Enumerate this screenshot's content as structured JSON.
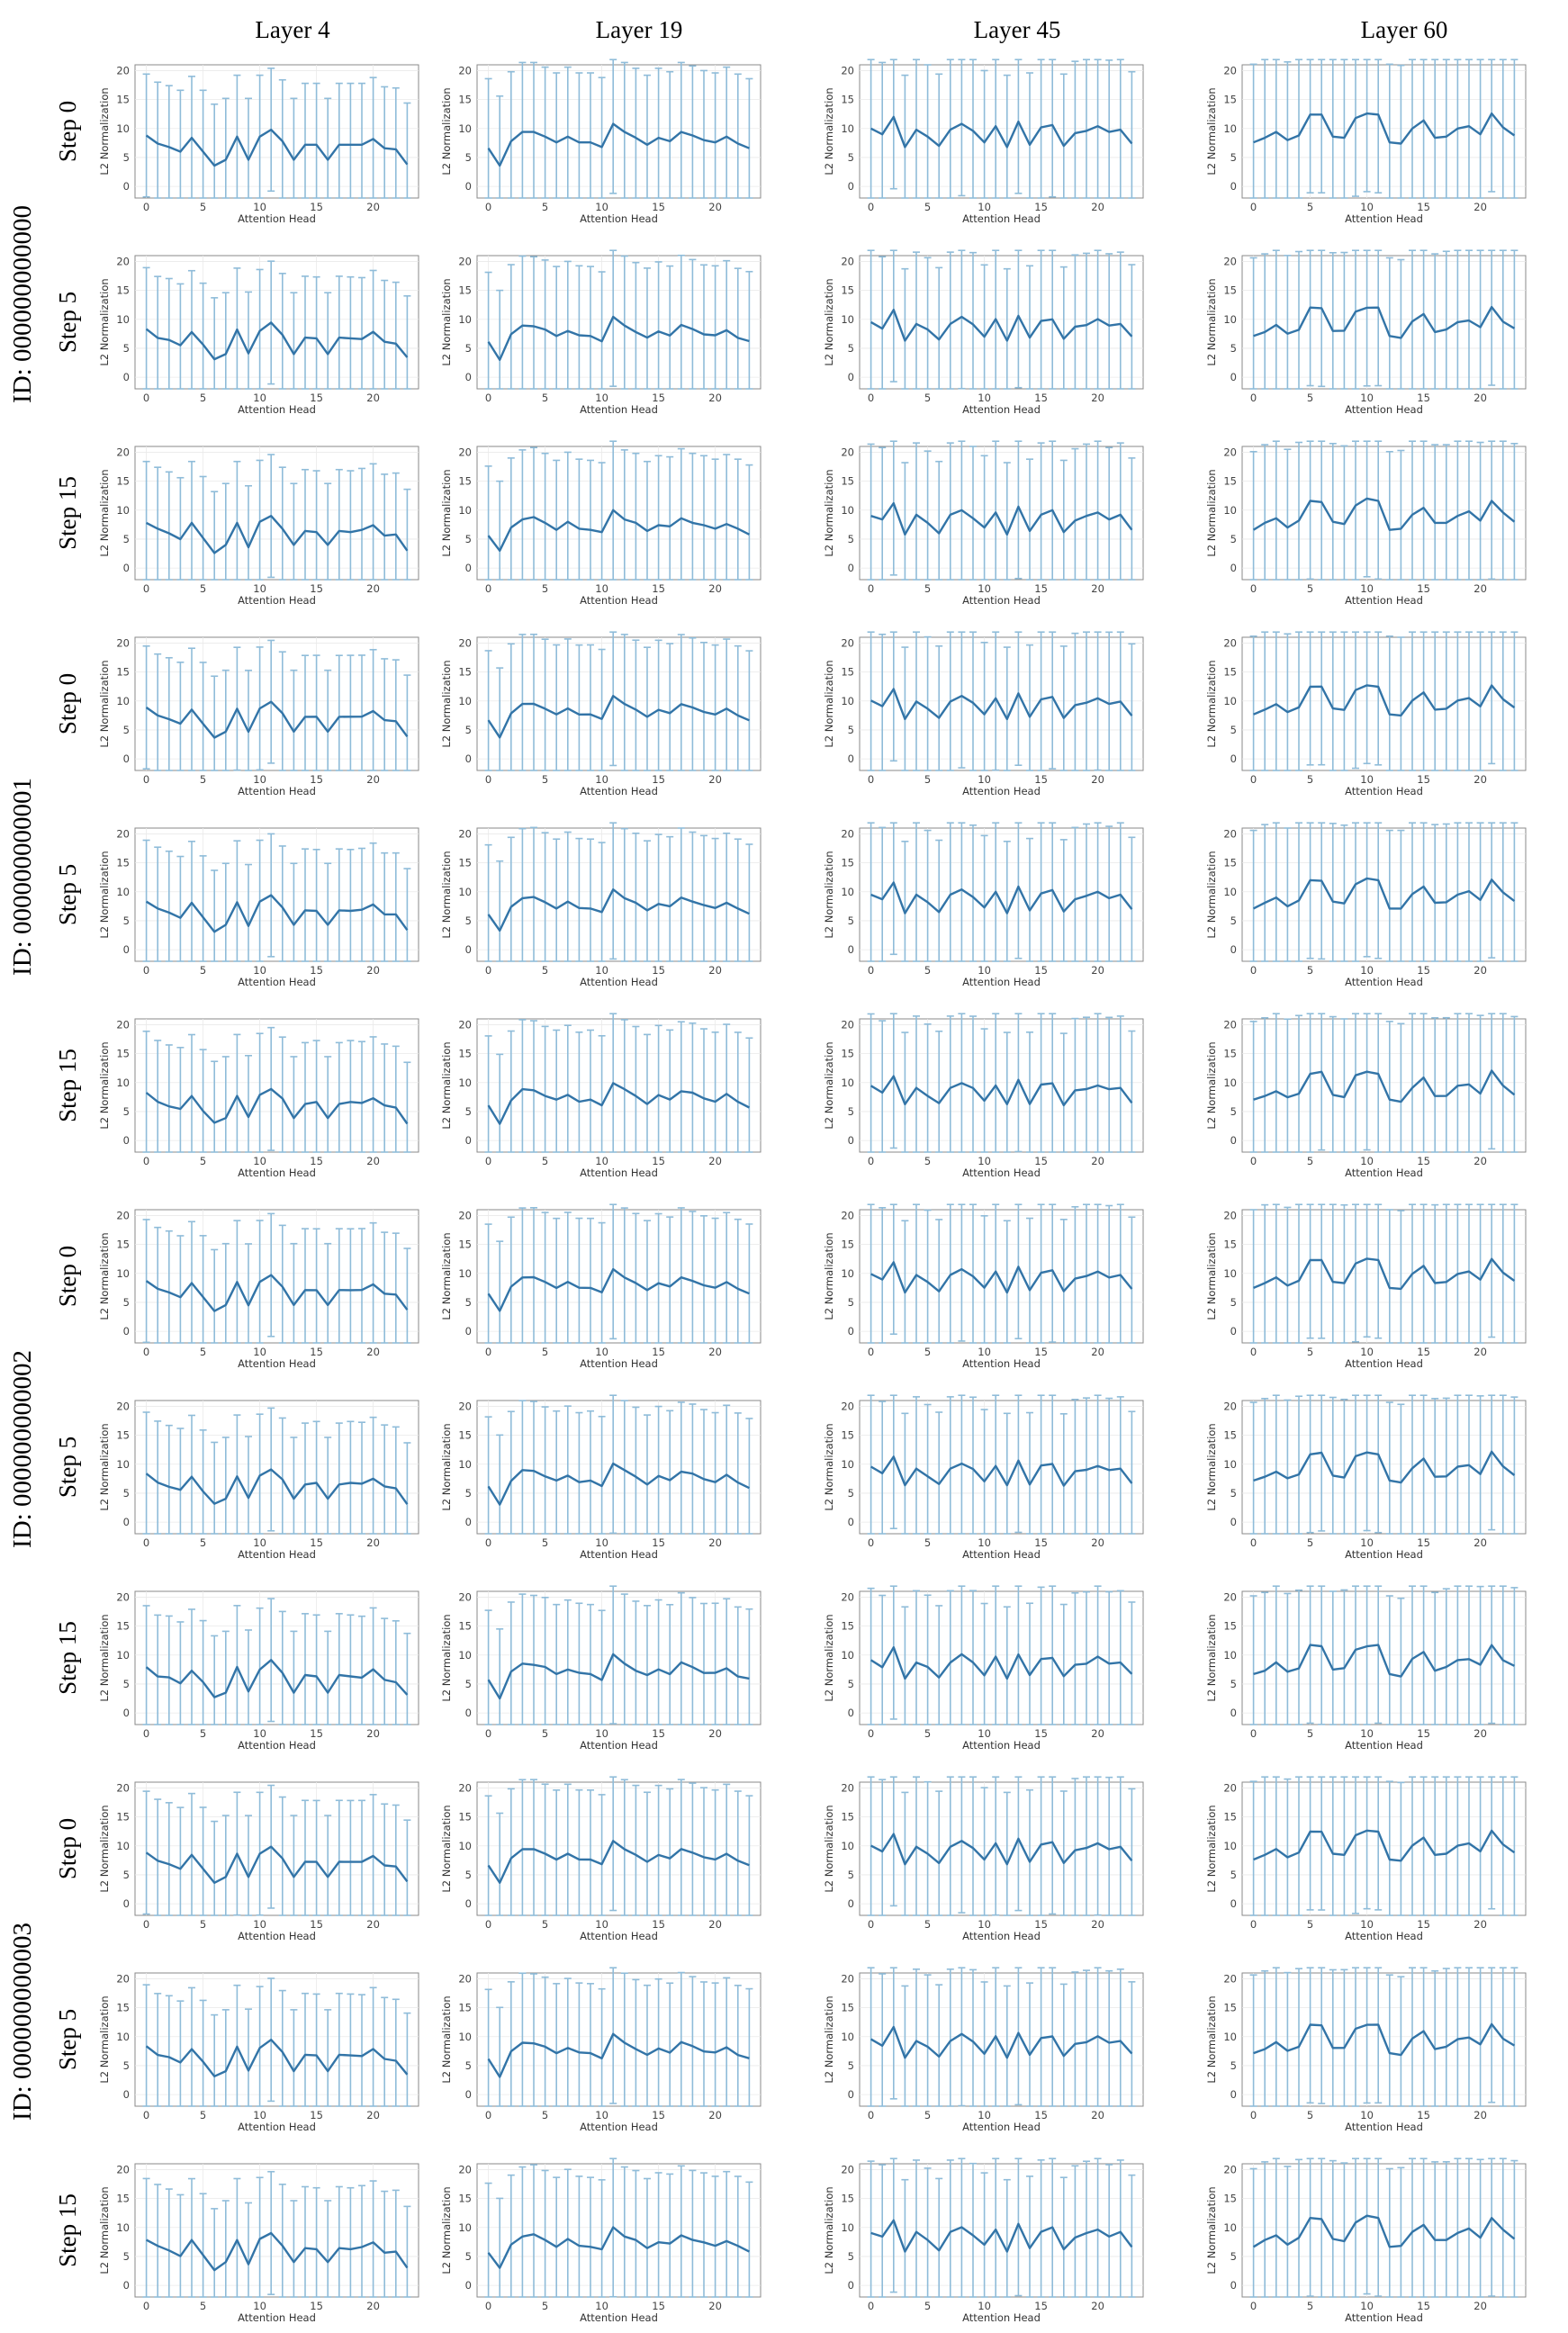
{
  "layers": [
    "Layer 4",
    "Layer 19",
    "Layer 45",
    "Layer 60"
  ],
  "ids": [
    "ID: 000000000000",
    "ID: 000000000001",
    "ID: 000000000002",
    "ID: 000000000003"
  ],
  "steps": [
    "Step 0",
    "Step 5",
    "Step 15"
  ],
  "colors": {
    "mean_line": "#3274a7",
    "error_bar": "#8fbcd9",
    "frame": "#8a8a8a",
    "grid": "#e9e9e9"
  },
  "chart_data": {
    "type": "line",
    "xlabel": "Attention Head",
    "ylabel": "L2 Normalization",
    "xticks": [
      0,
      5,
      10,
      15,
      20
    ],
    "yticks": [
      0,
      5,
      10,
      15,
      20
    ],
    "xlim": [
      -1,
      24
    ],
    "ylim": [
      -2,
      21
    ],
    "grid": true,
    "x": [
      0,
      1,
      2,
      3,
      4,
      5,
      6,
      7,
      8,
      9,
      10,
      11,
      12,
      13,
      14,
      15,
      16,
      17,
      18,
      19,
      20,
      21,
      22,
      23
    ],
    "base_series": {
      "Layer 4": [
        8.8,
        7.4,
        6.8,
        6.0,
        8.4,
        6.0,
        3.6,
        4.6,
        8.6,
        4.6,
        8.6,
        9.8,
        7.8,
        4.6,
        7.2,
        7.2,
        4.6,
        7.2,
        7.2,
        7.2,
        8.2,
        6.6,
        6.4,
        3.8
      ],
      "Layer 19": [
        6.6,
        3.6,
        7.8,
        9.4,
        9.4,
        8.6,
        7.6,
        8.6,
        7.6,
        7.6,
        6.8,
        10.8,
        9.4,
        8.4,
        7.2,
        8.4,
        7.8,
        9.4,
        8.8,
        8.0,
        7.6,
        8.6,
        7.4,
        6.6
      ],
      "Layer 45": [
        10.0,
        9.0,
        12.0,
        6.8,
        9.8,
        8.6,
        7.0,
        9.8,
        10.8,
        9.6,
        7.6,
        10.4,
        6.8,
        11.2,
        7.2,
        10.2,
        10.6,
        7.0,
        9.2,
        9.6,
        10.4,
        9.4,
        9.8,
        7.4
      ],
      "Layer 60": [
        7.6,
        8.4,
        9.4,
        8.0,
        8.8,
        12.4,
        12.4,
        8.6,
        8.4,
        11.8,
        12.6,
        12.4,
        7.6,
        7.4,
        10.0,
        11.4,
        8.4,
        8.6,
        10.0,
        10.4,
        9.0,
        12.6,
        10.2,
        8.8
      ]
    },
    "error_halfwidth": {
      "Layer 4": 10.6,
      "Layer 19": 12.0,
      "Layer 45": 12.4,
      "Layer 60": 13.5
    },
    "step_offsets": {
      "Step 0": 0.0,
      "Step 5": -0.6,
      "Step 15": -1.0
    },
    "id_offsets": {
      "ID: 000000000000": 0.0,
      "ID: 000000000001": 0.1,
      "ID: 000000000002": -0.1,
      "ID: 000000000003": 0.05
    }
  }
}
